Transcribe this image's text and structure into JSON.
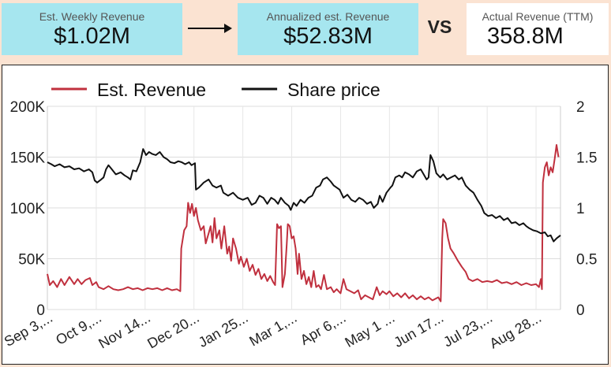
{
  "kpis": {
    "weekly": {
      "label": "Est. Weekly Revenue",
      "value": "$1.02M"
    },
    "annualized": {
      "label": "Annualized est. Revenue",
      "value": "$52.83M"
    },
    "vs": "VS",
    "actual": {
      "label": "Actual Revenue (TTM)",
      "value": "358.8M"
    }
  },
  "chart_data": {
    "type": "line",
    "legend": {
      "position": "top-left"
    },
    "grid": true,
    "x_tick_labels": [
      "Sep 3,...",
      "Oct 9,...",
      "Nov 14...",
      "Dec 20...",
      "Jan 25...",
      "Mar 1,...",
      "Apr 6,...",
      "May 1 ...",
      "Jun 17...",
      "Jul 23,...",
      "Aug 28..."
    ],
    "x_range": [
      0,
      10.5
    ],
    "y_left": {
      "range": [
        0,
        200000
      ],
      "ticks": [
        "0",
        "50K",
        "100K",
        "150K",
        "200K"
      ],
      "tick_values": [
        0,
        50000,
        100000,
        150000,
        200000
      ]
    },
    "y_right": {
      "range": [
        0,
        2
      ],
      "ticks": [
        "0",
        "0.5",
        "1",
        "1.5",
        "2"
      ],
      "tick_values": [
        0,
        0.5,
        1,
        1.5,
        2
      ]
    },
    "series": [
      {
        "name": "Est. Revenue",
        "axis": "left",
        "color": "#c0303e",
        "points": [
          [
            0.0,
            35000
          ],
          [
            0.05,
            24000
          ],
          [
            0.12,
            28000
          ],
          [
            0.2,
            22000
          ],
          [
            0.28,
            30000
          ],
          [
            0.35,
            24000
          ],
          [
            0.45,
            32000
          ],
          [
            0.55,
            25000
          ],
          [
            0.62,
            30000
          ],
          [
            0.7,
            25000
          ],
          [
            0.78,
            29000
          ],
          [
            0.87,
            31000
          ],
          [
            0.92,
            24000
          ],
          [
            1.0,
            27000
          ],
          [
            1.05,
            22000
          ],
          [
            1.15,
            20000
          ],
          [
            1.25,
            23000
          ],
          [
            1.35,
            20000
          ],
          [
            1.45,
            19000
          ],
          [
            1.55,
            20000
          ],
          [
            1.65,
            22000
          ],
          [
            1.75,
            20000
          ],
          [
            1.85,
            21000
          ],
          [
            1.95,
            19000
          ],
          [
            2.05,
            21000
          ],
          [
            2.15,
            20000
          ],
          [
            2.25,
            21000
          ],
          [
            2.35,
            19000
          ],
          [
            2.45,
            21000
          ],
          [
            2.55,
            19000
          ],
          [
            2.65,
            20000
          ],
          [
            2.72,
            18000
          ],
          [
            2.74,
            60000
          ],
          [
            2.8,
            78000
          ],
          [
            2.85,
            82000
          ],
          [
            2.88,
            105000
          ],
          [
            2.92,
            95000
          ],
          [
            2.96,
            104000
          ],
          [
            3.0,
            92000
          ],
          [
            3.04,
            100000
          ],
          [
            3.08,
            88000
          ],
          [
            3.14,
            78000
          ],
          [
            3.2,
            82000
          ],
          [
            3.24,
            65000
          ],
          [
            3.3,
            75000
          ],
          [
            3.34,
            82000
          ],
          [
            3.38,
            66000
          ],
          [
            3.42,
            90000
          ],
          [
            3.46,
            70000
          ],
          [
            3.52,
            78000
          ],
          [
            3.56,
            60000
          ],
          [
            3.62,
            82000
          ],
          [
            3.68,
            55000
          ],
          [
            3.72,
            62000
          ],
          [
            3.76,
            48000
          ],
          [
            3.8,
            70000
          ],
          [
            3.86,
            60000
          ],
          [
            3.92,
            45000
          ],
          [
            3.96,
            52000
          ],
          [
            4.02,
            42000
          ],
          [
            4.08,
            50000
          ],
          [
            4.14,
            38000
          ],
          [
            4.2,
            44000
          ],
          [
            4.26,
            34000
          ],
          [
            4.32,
            40000
          ],
          [
            4.38,
            30000
          ],
          [
            4.44,
            35000
          ],
          [
            4.5,
            28000
          ],
          [
            4.56,
            33000
          ],
          [
            4.62,
            27000
          ],
          [
            4.66,
            24000
          ],
          [
            4.7,
            84000
          ],
          [
            4.74,
            80000
          ],
          [
            4.78,
            82000
          ],
          [
            4.81,
            22000
          ],
          [
            4.86,
            35000
          ],
          [
            4.9,
            65000
          ],
          [
            4.92,
            84000
          ],
          [
            4.96,
            82000
          ],
          [
            5.0,
            70000
          ],
          [
            5.04,
            72000
          ],
          [
            5.08,
            60000
          ],
          [
            5.12,
            35000
          ],
          [
            5.15,
            55000
          ],
          [
            5.2,
            30000
          ],
          [
            5.25,
            38000
          ],
          [
            5.3,
            25000
          ],
          [
            5.35,
            32000
          ],
          [
            5.4,
            22000
          ],
          [
            5.45,
            38000
          ],
          [
            5.5,
            22000
          ],
          [
            5.55,
            24000
          ],
          [
            5.6,
            20000
          ],
          [
            5.66,
            34000
          ],
          [
            5.72,
            20000
          ],
          [
            5.8,
            22000
          ],
          [
            5.86,
            17000
          ],
          [
            5.92,
            20000
          ],
          [
            6.0,
            16000
          ],
          [
            6.06,
            30000
          ],
          [
            6.12,
            20000
          ],
          [
            6.2,
            18000
          ],
          [
            6.28,
            16000
          ],
          [
            6.36,
            19000
          ],
          [
            6.42,
            10000
          ],
          [
            6.5,
            14000
          ],
          [
            6.58,
            12000
          ],
          [
            6.66,
            10000
          ],
          [
            6.74,
            22000
          ],
          [
            6.8,
            14000
          ],
          [
            6.86,
            18000
          ],
          [
            6.94,
            15000
          ],
          [
            7.0,
            18000
          ],
          [
            7.08,
            13000
          ],
          [
            7.16,
            16000
          ],
          [
            7.24,
            12000
          ],
          [
            7.32,
            16000
          ],
          [
            7.4,
            11000
          ],
          [
            7.48,
            14000
          ],
          [
            7.56,
            10000
          ],
          [
            7.64,
            13000
          ],
          [
            7.72,
            10000
          ],
          [
            7.8,
            12000
          ],
          [
            7.88,
            9000
          ],
          [
            8.0,
            12000
          ],
          [
            8.05,
            8000
          ],
          [
            8.08,
            70000
          ],
          [
            8.1,
            89000
          ],
          [
            8.15,
            85000
          ],
          [
            8.2,
            70000
          ],
          [
            8.25,
            60000
          ],
          [
            8.32,
            55000
          ],
          [
            8.4,
            48000
          ],
          [
            8.48,
            42000
          ],
          [
            8.56,
            37000
          ],
          [
            8.62,
            30000
          ],
          [
            8.7,
            28000
          ],
          [
            8.8,
            30000
          ],
          [
            8.9,
            27000
          ],
          [
            9.0,
            28000
          ],
          [
            9.1,
            27000
          ],
          [
            9.2,
            29000
          ],
          [
            9.3,
            26000
          ],
          [
            9.4,
            27000
          ],
          [
            9.5,
            25000
          ],
          [
            9.6,
            27000
          ],
          [
            9.7,
            24000
          ],
          [
            9.8,
            26000
          ],
          [
            9.9,
            24000
          ],
          [
            10.0,
            25000
          ],
          [
            10.06,
            22000
          ],
          [
            10.1,
            30000
          ],
          [
            10.12,
            20000
          ],
          [
            10.14,
            125000
          ],
          [
            10.18,
            140000
          ],
          [
            10.22,
            145000
          ],
          [
            10.26,
            132000
          ],
          [
            10.3,
            140000
          ],
          [
            10.34,
            135000
          ],
          [
            10.38,
            148000
          ],
          [
            10.42,
            162000
          ],
          [
            10.46,
            150000
          ]
        ]
      },
      {
        "name": "Share price",
        "axis": "right",
        "color": "#111111",
        "points": [
          [
            0.0,
            1.45
          ],
          [
            0.08,
            1.43
          ],
          [
            0.15,
            1.41
          ],
          [
            0.25,
            1.43
          ],
          [
            0.35,
            1.4
          ],
          [
            0.45,
            1.41
          ],
          [
            0.55,
            1.38
          ],
          [
            0.65,
            1.39
          ],
          [
            0.75,
            1.36
          ],
          [
            0.85,
            1.38
          ],
          [
            0.92,
            1.35
          ],
          [
            0.97,
            1.27
          ],
          [
            1.02,
            1.25
          ],
          [
            1.1,
            1.28
          ],
          [
            1.15,
            1.3
          ],
          [
            1.2,
            1.38
          ],
          [
            1.25,
            1.42
          ],
          [
            1.32,
            1.38
          ],
          [
            1.4,
            1.33
          ],
          [
            1.5,
            1.35
          ],
          [
            1.58,
            1.32
          ],
          [
            1.65,
            1.3
          ],
          [
            1.7,
            1.28
          ],
          [
            1.75,
            1.37
          ],
          [
            1.82,
            1.36
          ],
          [
            1.9,
            1.45
          ],
          [
            1.96,
            1.58
          ],
          [
            2.02,
            1.52
          ],
          [
            2.08,
            1.55
          ],
          [
            2.15,
            1.53
          ],
          [
            2.22,
            1.52
          ],
          [
            2.3,
            1.55
          ],
          [
            2.38,
            1.5
          ],
          [
            2.45,
            1.48
          ],
          [
            2.52,
            1.45
          ],
          [
            2.6,
            1.44
          ],
          [
            2.68,
            1.46
          ],
          [
            2.75,
            1.45
          ],
          [
            2.82,
            1.43
          ],
          [
            2.9,
            1.45
          ],
          [
            2.95,
            1.42
          ],
          [
            3.02,
            1.44
          ],
          [
            3.04,
            1.18
          ],
          [
            3.1,
            1.2
          ],
          [
            3.2,
            1.25
          ],
          [
            3.3,
            1.28
          ],
          [
            3.38,
            1.22
          ],
          [
            3.46,
            1.2
          ],
          [
            3.55,
            1.22
          ],
          [
            3.6,
            1.15
          ],
          [
            3.7,
            1.12
          ],
          [
            3.8,
            1.15
          ],
          [
            3.9,
            1.1
          ],
          [
            4.0,
            1.08
          ],
          [
            4.1,
            1.1
          ],
          [
            4.18,
            1.03
          ],
          [
            4.26,
            1.05
          ],
          [
            4.34,
            1.12
          ],
          [
            4.42,
            1.1
          ],
          [
            4.5,
            1.04
          ],
          [
            4.58,
            1.1
          ],
          [
            4.65,
            1.08
          ],
          [
            4.72,
            1.04
          ],
          [
            4.78,
            1.1
          ],
          [
            4.86,
            1.05
          ],
          [
            4.94,
            1.02
          ],
          [
            4.98,
            0.98
          ],
          [
            5.04,
            1.05
          ],
          [
            5.1,
            1.02
          ],
          [
            5.18,
            1.08
          ],
          [
            5.26,
            1.05
          ],
          [
            5.34,
            1.1
          ],
          [
            5.42,
            1.12
          ],
          [
            5.5,
            1.2
          ],
          [
            5.58,
            1.22
          ],
          [
            5.64,
            1.28
          ],
          [
            5.72,
            1.3
          ],
          [
            5.8,
            1.26
          ],
          [
            5.86,
            1.22
          ],
          [
            5.92,
            1.2
          ],
          [
            5.98,
            1.18
          ],
          [
            6.06,
            1.1
          ],
          [
            6.14,
            1.13
          ],
          [
            6.22,
            1.08
          ],
          [
            6.3,
            1.06
          ],
          [
            6.38,
            1.1
          ],
          [
            6.46,
            1.08
          ],
          [
            6.54,
            1.04
          ],
          [
            6.62,
            1.06
          ],
          [
            6.68,
            1.0
          ],
          [
            6.76,
            1.04
          ],
          [
            6.8,
            1.12
          ],
          [
            6.86,
            1.06
          ],
          [
            6.94,
            1.15
          ],
          [
            7.02,
            1.2
          ],
          [
            7.06,
            1.22
          ],
          [
            7.12,
            1.3
          ],
          [
            7.2,
            1.32
          ],
          [
            7.26,
            1.3
          ],
          [
            7.32,
            1.35
          ],
          [
            7.4,
            1.33
          ],
          [
            7.48,
            1.3
          ],
          [
            7.56,
            1.36
          ],
          [
            7.64,
            1.38
          ],
          [
            7.7,
            1.33
          ],
          [
            7.76,
            1.28
          ],
          [
            7.8,
            1.3
          ],
          [
            7.84,
            1.52
          ],
          [
            7.9,
            1.46
          ],
          [
            7.96,
            1.34
          ],
          [
            8.04,
            1.3
          ],
          [
            8.1,
            1.33
          ],
          [
            8.18,
            1.28
          ],
          [
            8.26,
            1.3
          ],
          [
            8.34,
            1.32
          ],
          [
            8.42,
            1.28
          ],
          [
            8.48,
            1.3
          ],
          [
            8.56,
            1.22
          ],
          [
            8.64,
            1.18
          ],
          [
            8.72,
            1.15
          ],
          [
            8.8,
            1.08
          ],
          [
            8.88,
            1.02
          ],
          [
            8.94,
            0.95
          ],
          [
            9.02,
            0.92
          ],
          [
            9.1,
            0.93
          ],
          [
            9.18,
            0.9
          ],
          [
            9.26,
            0.92
          ],
          [
            9.34,
            0.88
          ],
          [
            9.42,
            0.9
          ],
          [
            9.5,
            0.85
          ],
          [
            9.58,
            0.86
          ],
          [
            9.66,
            0.83
          ],
          [
            9.74,
            0.85
          ],
          [
            9.8,
            0.82
          ],
          [
            9.86,
            0.8
          ],
          [
            9.94,
            0.78
          ],
          [
            10.02,
            0.77
          ],
          [
            10.1,
            0.75
          ],
          [
            10.18,
            0.76
          ],
          [
            10.24,
            0.72
          ],
          [
            10.3,
            0.73
          ],
          [
            10.36,
            0.67
          ],
          [
            10.42,
            0.7
          ],
          [
            10.5,
            0.73
          ]
        ]
      }
    ]
  }
}
